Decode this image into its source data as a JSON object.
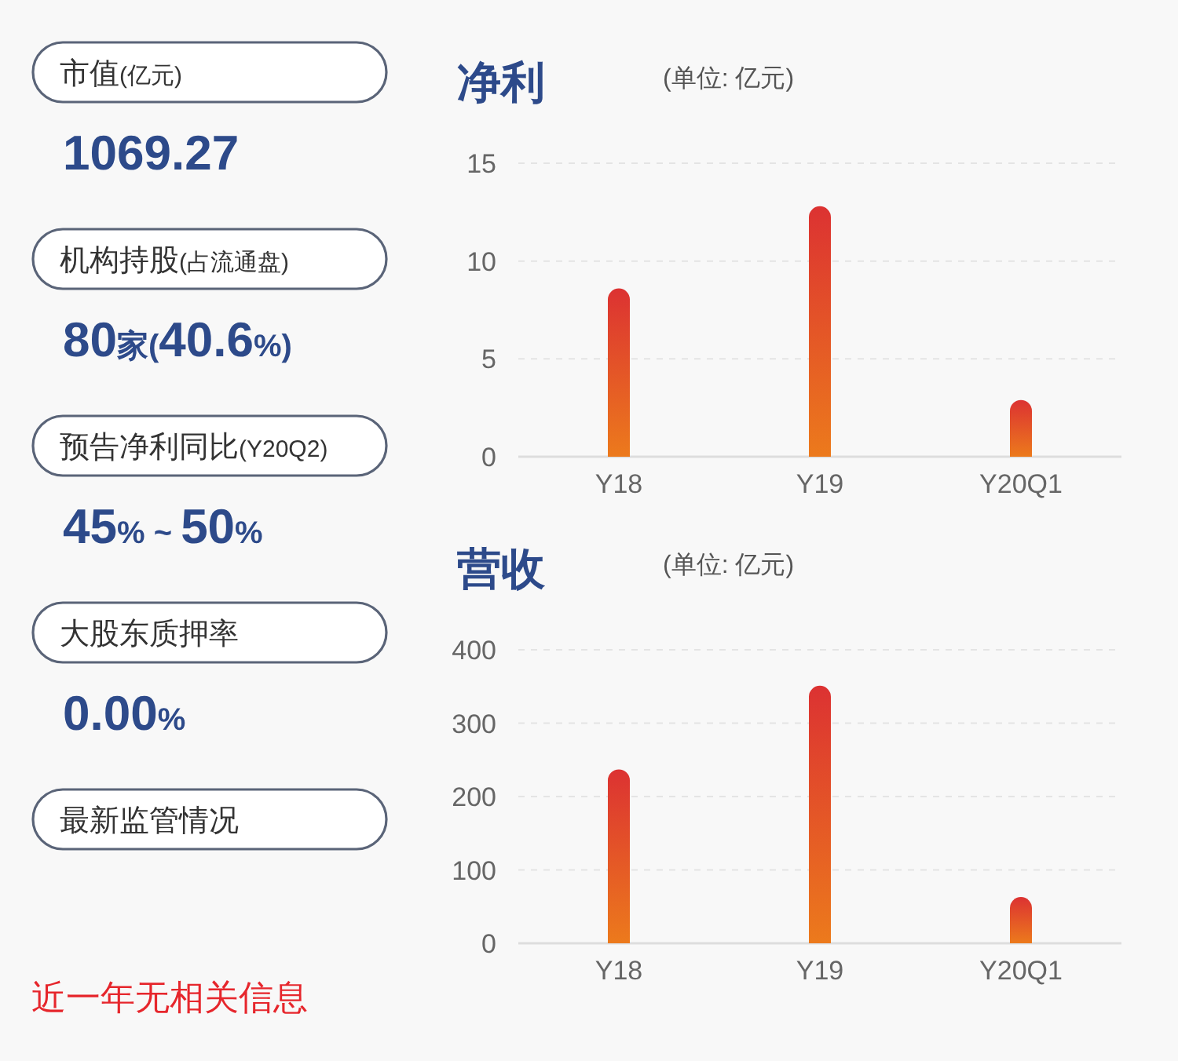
{
  "chart_data": [
    {
      "type": "other",
      "annotations": [
        "市值(亿元)",
        "1069.27",
        "机构持股(占流通盘)",
        "80家(40.6%)",
        "预告净利同比(Y20Q2)",
        "45% ~ 50%",
        "大股东质押率",
        "0.00%",
        "最新监管情况",
        "近一年无相关信息"
      ]
    },
    {
      "type": "bar",
      "title": "净利",
      "subtitle": "(单位: 亿元)",
      "categories": [
        "Y18",
        "Y19",
        "Y20Q1"
      ],
      "series": [
        {
          "color": "#dc3232",
          "values": [
            8.6,
            12.8,
            2.9
          ]
        }
      ],
      "ylim": [
        0,
        15
      ],
      "yticks": [
        0,
        5,
        10,
        15
      ],
      "grid": "y"
    },
    {
      "type": "bar",
      "title": "营收",
      "subtitle": "(单位: 亿元)",
      "categories": [
        "Y18",
        "Y19",
        "Y20Q1"
      ],
      "series": [
        {
          "color": "#dc3232",
          "values": [
            237,
            351,
            63
          ]
        }
      ],
      "ylim": [
        0,
        400
      ],
      "yticks": [
        0,
        100,
        200,
        300,
        400
      ],
      "grid": "y"
    }
  ]
}
